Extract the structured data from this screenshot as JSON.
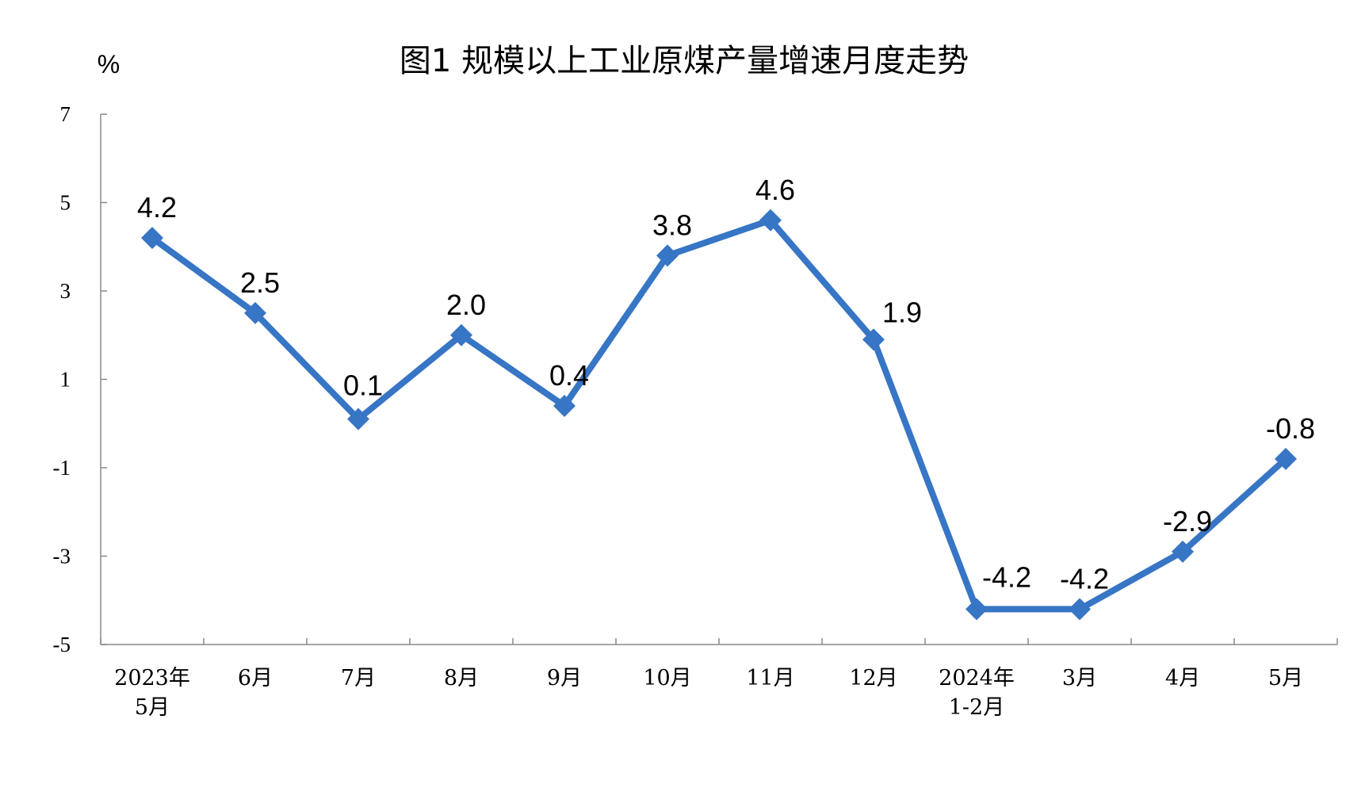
{
  "chart_data": {
    "type": "line",
    "title": "图1  规模以上工业原煤产量增速月度走势",
    "ylabel": "%",
    "xlabel": "",
    "ylim": [
      -5,
      7
    ],
    "yticks": [
      "7",
      "5",
      "3",
      "1",
      "-1",
      "-3",
      "-5"
    ],
    "ytick_values": [
      7,
      5,
      3,
      1,
      -1,
      -3,
      -5
    ],
    "categories": [
      [
        "2023年",
        "5月"
      ],
      [
        "6月"
      ],
      [
        "7月"
      ],
      [
        "8月"
      ],
      [
        "9月"
      ],
      [
        "10月"
      ],
      [
        "11月"
      ],
      [
        "12月"
      ],
      [
        "2024年",
        "1-2月"
      ],
      [
        "3月"
      ],
      [
        "4月"
      ],
      [
        "5月"
      ]
    ],
    "values": [
      4.2,
      2.5,
      0.1,
      2.0,
      0.4,
      3.8,
      4.6,
      1.9,
      -4.2,
      -4.2,
      -2.9,
      -0.8
    ],
    "data_labels": [
      "4.2",
      "2.5",
      "0.1",
      "2.0",
      "0.4",
      "3.8",
      "4.6",
      "1.9",
      "-4.2",
      "-4.2",
      "-2.9",
      "-0.8"
    ],
    "grid": false,
    "legend": "none",
    "line_color": "#3775C5",
    "marker": "diamond"
  }
}
